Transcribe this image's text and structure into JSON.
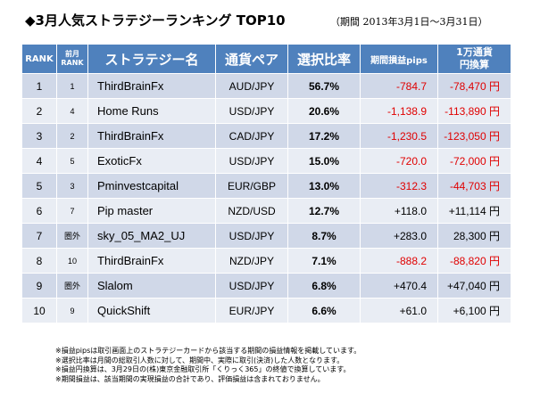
{
  "title": "◆3月人気ストラテジーランキング TOP10",
  "period": "（期間 2013年3月1日～3月31日）",
  "headers": {
    "rank": "RANK",
    "prev": "前月",
    "prev2": "RANK",
    "name": "ストラテジー名",
    "pair": "通貨ペア",
    "ratio": "選択比率",
    "pips": "期間損益pips",
    "yen1": "1万通貨",
    "yen2": "円換算"
  },
  "rows": [
    {
      "rank": "1",
      "prev": "1",
      "name": "ThirdBrainFx",
      "pair": "AUD/JPY",
      "ratio": "56.7%",
      "pips": "-784.7",
      "yen": "-78,470 円"
    },
    {
      "rank": "2",
      "prev": "4",
      "name": "Home Runs",
      "pair": "USD/JPY",
      "ratio": "20.6%",
      "pips": "-1,138.9",
      "yen": "-113,890 円"
    },
    {
      "rank": "3",
      "prev": "2",
      "name": "ThirdBrainFx",
      "pair": "CAD/JPY",
      "ratio": "17.2%",
      "pips": "-1,230.5",
      "yen": "-123,050 円"
    },
    {
      "rank": "4",
      "prev": "5",
      "name": "ExoticFx",
      "pair": "USD/JPY",
      "ratio": "15.0%",
      "pips": "-720.0",
      "yen": "-72,000 円"
    },
    {
      "rank": "5",
      "prev": "3",
      "name": "Pminvestcapital",
      "pair": "EUR/GBP",
      "ratio": "13.0%",
      "pips": "-312.3",
      "yen": "-44,703 円"
    },
    {
      "rank": "6",
      "prev": "7",
      "name": "Pip master",
      "pair": "NZD/USD",
      "ratio": "12.7%",
      "pips": "+118.0",
      "yen": "+11,114 円"
    },
    {
      "rank": "7",
      "prev": "圏外",
      "name": "sky_05_MA2_UJ",
      "pair": "USD/JPY",
      "ratio": "8.7%",
      "pips": "+283.0",
      "yen": "28,300 円"
    },
    {
      "rank": "8",
      "prev": "10",
      "name": "ThirdBrainFx",
      "pair": "NZD/JPY",
      "ratio": "7.1%",
      "pips": "-888.2",
      "yen": "-88,820 円"
    },
    {
      "rank": "9",
      "prev": "圏外",
      "name": "Slalom",
      "pair": "USD/JPY",
      "ratio": "6.8%",
      "pips": "+470.4",
      "yen": "+47,040 円"
    },
    {
      "rank": "10",
      "prev": "9",
      "name": "QuickShift",
      "pair": "EUR/JPY",
      "ratio": "6.6%",
      "pips": "+61.0",
      "yen": "+6,100 円"
    }
  ],
  "notes": [
    "※損益pipsは取引画面上のストラテジーカードから該当する期間の損益情報を掲載しています。",
    "※選択比率は月間の総取引人数に対して、期間中、実際に取引(決済)した人数となります。",
    "※損益円換算は、3月29日の(株)東京金融取引所「くりっく365」の終値で換算しています。",
    "※期間損益は、該当期間の実現損益の合計であり、評価損益は含まれておりません。"
  ]
}
